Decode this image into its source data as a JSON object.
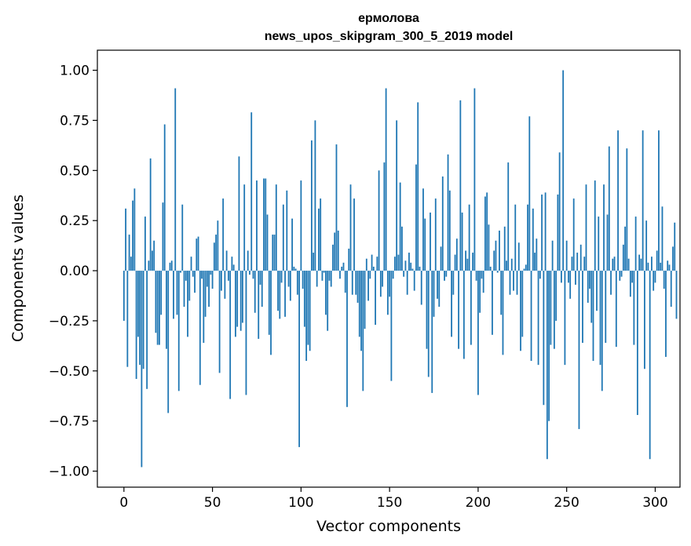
{
  "chart_data": {
    "type": "bar",
    "title": "ермолова",
    "subtitle": "news_upos_skipgram_300_5_2019 model",
    "xlabel": "Vector components",
    "ylabel": "Components values",
    "xlim": [
      -15,
      314
    ],
    "ylim": [
      -1.08,
      1.1
    ],
    "xticks": [
      0,
      50,
      100,
      150,
      200,
      250,
      300
    ],
    "yticks": [
      1.0,
      0.75,
      0.5,
      0.25,
      0.0,
      -0.25,
      -0.5,
      -0.75,
      -1.0
    ],
    "xtick_labels": [
      "0",
      "50",
      "100",
      "150",
      "200",
      "250",
      "300"
    ],
    "ytick_labels": [
      "1.00",
      "0.75",
      "0.50",
      "0.25",
      "0.00",
      "−0.25",
      "−0.50",
      "−0.75",
      "−1.00"
    ],
    "grid": false,
    "color": "#1f77b4",
    "values": [
      -0.25,
      0.31,
      -0.48,
      0.18,
      0.07,
      0.35,
      0.41,
      -0.54,
      -0.33,
      -0.47,
      -0.98,
      -0.49,
      0.27,
      -0.59,
      0.05,
      0.56,
      0.1,
      0.15,
      -0.31,
      -0.37,
      -0.37,
      -0.22,
      0.34,
      0.73,
      -0.39,
      -0.71,
      0.04,
      0.05,
      -0.24,
      0.91,
      -0.22,
      -0.6,
      -0.01,
      0.33,
      -0.18,
      -0.05,
      -0.33,
      -0.15,
      0.07,
      -0.03,
      -0.11,
      0.16,
      0.17,
      -0.57,
      -0.04,
      -0.36,
      -0.23,
      -0.08,
      -0.18,
      -0.02,
      -0.09,
      0.14,
      0.18,
      0.25,
      -0.51,
      -0.1,
      0.36,
      -0.14,
      0.1,
      -0.05,
      -0.64,
      0.07,
      0.03,
      -0.33,
      -0.28,
      0.57,
      -0.3,
      -0.26,
      0.43,
      -0.62,
      0.1,
      -0.02,
      0.79,
      -0.04,
      -0.21,
      0.45,
      -0.34,
      -0.07,
      -0.18,
      0.46,
      0.46,
      0.28,
      -0.32,
      -0.42,
      0.18,
      0.18,
      0.43,
      -0.2,
      -0.24,
      -0.06,
      0.33,
      -0.23,
      0.4,
      -0.08,
      -0.15,
      0.26,
      0.02,
      0.01,
      -0.12,
      -0.88,
      0.45,
      -0.09,
      -0.28,
      -0.45,
      -0.37,
      -0.4,
      0.65,
      0.09,
      0.75,
      -0.08,
      0.31,
      0.36,
      -0.05,
      -0.01,
      -0.22,
      -0.3,
      -0.05,
      -0.08,
      0.13,
      0.19,
      0.63,
      0.2,
      -0.04,
      0.02,
      0.04,
      -0.11,
      -0.68,
      0.11,
      0.43,
      -0.12,
      0.36,
      -0.12,
      -0.16,
      -0.33,
      -0.4,
      -0.6,
      -0.29,
      0.06,
      -0.15,
      -0.04,
      0.08,
      0.02,
      -0.27,
      0.07,
      0.5,
      -0.13,
      -0.08,
      0.54,
      0.91,
      -0.22,
      -0.13,
      -0.55,
      -0.04,
      0.07,
      0.75,
      0.08,
      0.44,
      0.22,
      -0.03,
      0.05,
      -0.12,
      0.09,
      0.04,
      0.01,
      -0.1,
      0.53,
      0.84,
      0.02,
      -0.17,
      0.41,
      0.26,
      -0.39,
      -0.53,
      0.29,
      -0.61,
      -0.23,
      0.36,
      -0.14,
      -0.18,
      0.12,
      0.47,
      -0.05,
      -0.03,
      0.58,
      0.4,
      -0.33,
      -0.12,
      0.08,
      0.16,
      -0.39,
      0.85,
      0.29,
      -0.44,
      0.1,
      0.06,
      0.33,
      -0.37,
      0.09,
      0.91,
      -0.05,
      -0.62,
      -0.21,
      -0.04,
      -0.11,
      0.37,
      0.39,
      0.23,
      0.02,
      -0.32,
      0.1,
      0.15,
      -0.01,
      0.2,
      -0.22,
      -0.42,
      0.22,
      0.05,
      0.54,
      -0.12,
      0.06,
      -0.1,
      0.33,
      -0.12,
      0.14,
      -0.4,
      -0.33,
      0.01,
      0.03,
      0.33,
      0.77,
      -0.45,
      0.31,
      0.09,
      0.16,
      -0.47,
      -0.04,
      0.38,
      -0.67,
      0.39,
      -0.94,
      -0.75,
      -0.37,
      0.15,
      -0.39,
      -0.25,
      0.38,
      0.59,
      -0.06,
      1.0,
      -0.47,
      0.15,
      -0.06,
      -0.14,
      0.07,
      0.36,
      -0.07,
      0.09,
      -0.79,
      0.13,
      -0.36,
      0.07,
      0.43,
      -0.16,
      -0.09,
      -0.26,
      -0.45,
      0.45,
      -0.2,
      0.27,
      -0.47,
      -0.6,
      0.43,
      -0.36,
      0.28,
      0.62,
      -0.12,
      0.06,
      0.07,
      -0.38,
      0.7,
      -0.05,
      -0.03,
      0.13,
      0.22,
      0.61,
      0.06,
      -0.13,
      -0.06,
      -0.37,
      0.27,
      -0.72,
      0.08,
      0.06,
      0.7,
      -0.49,
      0.25,
      0.04,
      -0.94,
      0.07,
      -0.1,
      -0.06,
      0.1,
      0.7,
      0.04,
      0.32,
      -0.09,
      -0.43,
      0.05,
      0.03,
      -0.18,
      0.12,
      0.24,
      -0.24
    ]
  }
}
